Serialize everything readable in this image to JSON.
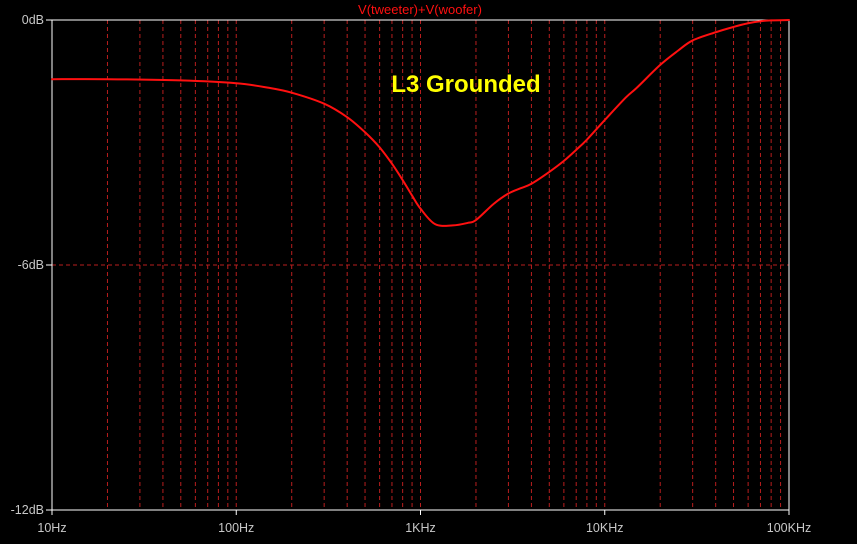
{
  "chart_data": {
    "type": "line",
    "title": "V(tweeter)+V(woofer)",
    "annotation": "L3 Grounded",
    "x_scale": "log",
    "xlim": [
      10,
      100000
    ],
    "ylim": [
      -12,
      0
    ],
    "x_ticks": [
      {
        "value": 10,
        "label": "10Hz"
      },
      {
        "value": 100,
        "label": "100Hz"
      },
      {
        "value": 1000,
        "label": "1KHz"
      },
      {
        "value": 10000,
        "label": "10KHz"
      },
      {
        "value": 100000,
        "label": "100KHz"
      }
    ],
    "y_ticks": [
      {
        "value": 0,
        "label": "0dB"
      },
      {
        "value": -6,
        "label": "-6dB"
      },
      {
        "value": -12,
        "label": "-12dB"
      }
    ],
    "grid": true,
    "colors": {
      "background": "#000000",
      "grid": "#b81e1e",
      "frame": "#ffffff",
      "trace": "#ff1010",
      "tick_text": "#c8c8c8",
      "annotation": "#ffff00"
    },
    "series": [
      {
        "name": "V(tweeter)+V(woofer)",
        "x": [
          10,
          20,
          50,
          100,
          150,
          200,
          300,
          400,
          500,
          600,
          700,
          800,
          900,
          1000,
          1200,
          1500,
          1800,
          2000,
          2500,
          3000,
          3500,
          4000,
          5000,
          6000,
          7000,
          8000,
          10000,
          13000,
          15000,
          20000,
          25000,
          30000,
          40000,
          50000,
          60000,
          70000,
          80000,
          100000
        ],
        "y": [
          -1.45,
          -1.45,
          -1.48,
          -1.55,
          -1.66,
          -1.78,
          -2.05,
          -2.38,
          -2.75,
          -3.12,
          -3.52,
          -3.92,
          -4.3,
          -4.62,
          -5.0,
          -5.03,
          -4.97,
          -4.9,
          -4.5,
          -4.25,
          -4.12,
          -4.01,
          -3.72,
          -3.45,
          -3.18,
          -2.93,
          -2.45,
          -1.9,
          -1.65,
          -1.1,
          -0.75,
          -0.5,
          -0.3,
          -0.17,
          -0.08,
          -0.03,
          -0.01,
          0.0
        ]
      }
    ]
  }
}
